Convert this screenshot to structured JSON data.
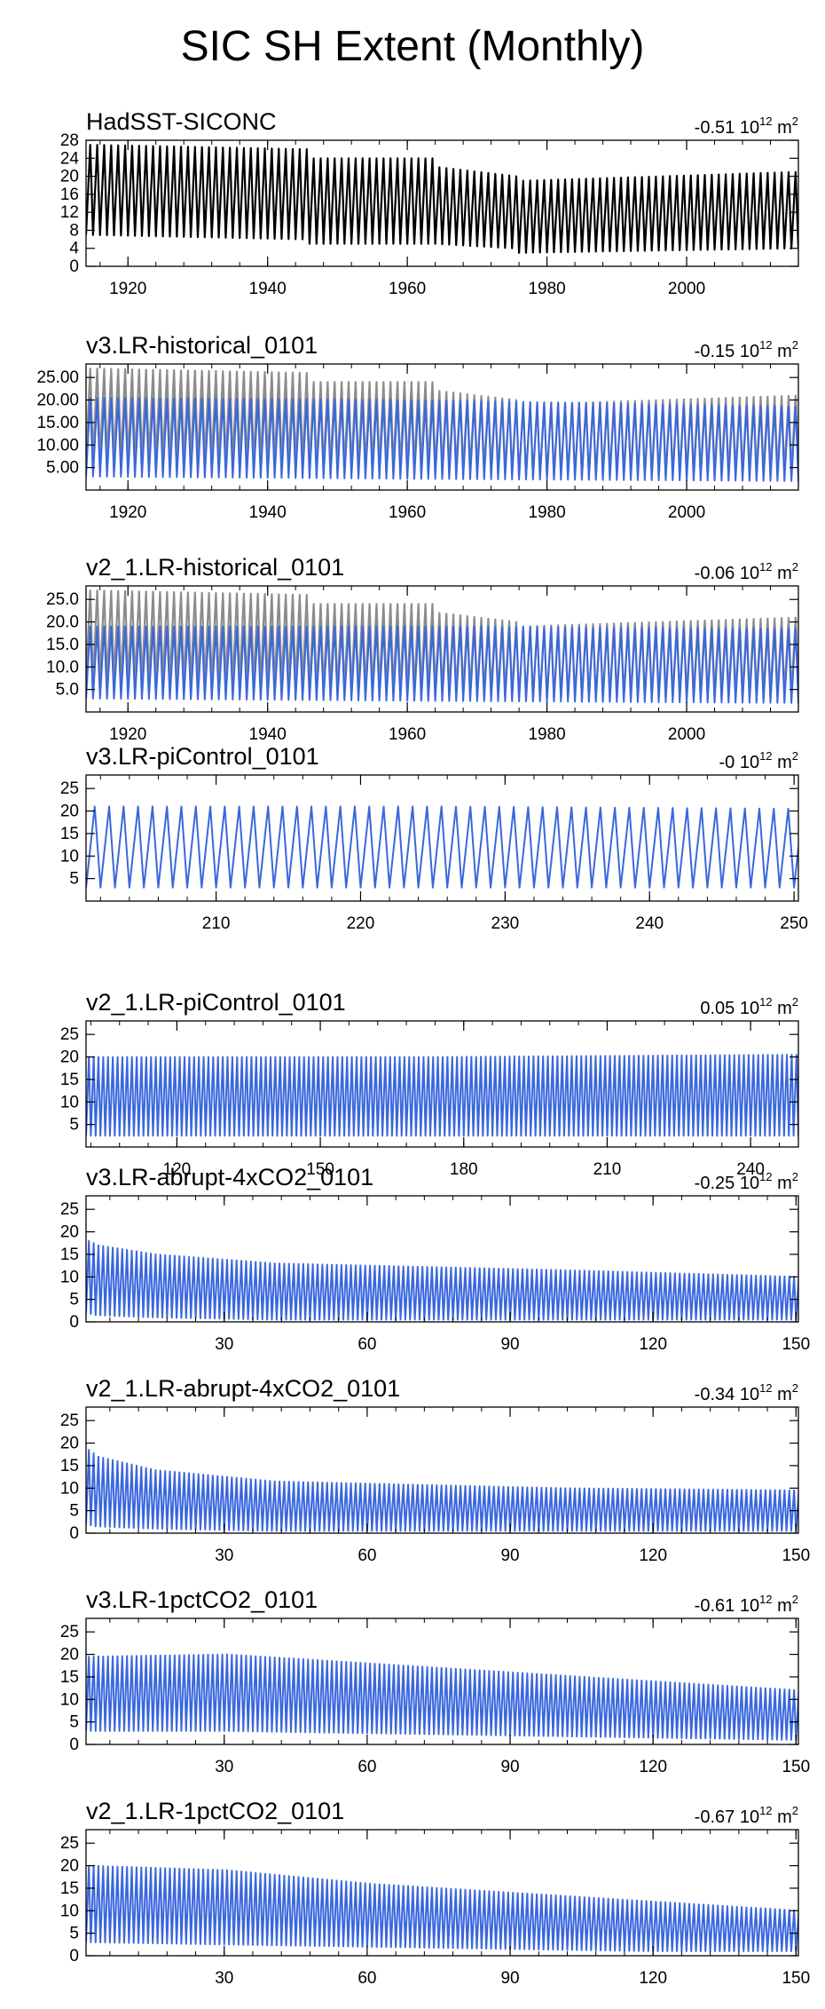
{
  "title": "SIC SH Extent (Monthly)",
  "colors": {
    "observed": "#000000",
    "observed_ref": "#8c8c8c",
    "model": "#3a67dd",
    "axis": "#000000"
  },
  "chart_data": [
    {
      "type": "line",
      "title": "HadSST-SICONC",
      "trend_value": "-0.51",
      "trend_unit": "10",
      "trend_exp": "12",
      "trend_tail": " m",
      "trend_sup": "2",
      "xlim": [
        1914,
        2016
      ],
      "ylim": [
        0,
        28
      ],
      "xticks": [
        1920,
        1940,
        1960,
        1980,
        2000
      ],
      "xtick_labels": [
        "1920",
        "1940",
        "1960",
        "1980",
        "2000"
      ],
      "yticks": [
        0,
        4,
        8,
        12,
        16,
        20,
        24,
        28
      ],
      "ytick_labels": [
        "0",
        "4",
        "8",
        "12",
        "16",
        "20",
        "24",
        "28"
      ],
      "series": [
        {
          "name": "HadSST-SICONC",
          "role": "observed",
          "cycle_period": 1,
          "seg_x": [
            1914,
            1945,
            1946,
            1963,
            1964,
            1975,
            1976,
            2016
          ],
          "max_y": [
            27,
            26,
            24,
            24,
            22,
            20,
            19,
            21
          ],
          "min_y": [
            7,
            6,
            5,
            5,
            5,
            4,
            3,
            4
          ]
        }
      ]
    },
    {
      "type": "line",
      "title": "v3.LR-historical_0101",
      "trend_value": "-0.15",
      "trend_unit": "10",
      "trend_exp": "12",
      "trend_tail": " m",
      "trend_sup": "2",
      "xlim": [
        1914,
        2016
      ],
      "ylim": [
        0,
        28
      ],
      "xticks": [
        1920,
        1940,
        1960,
        1980,
        2000
      ],
      "xtick_labels": [
        "1920",
        "1940",
        "1960",
        "1980",
        "2000"
      ],
      "yticks": [
        5,
        10,
        15,
        20,
        25
      ],
      "ytick_labels": [
        "5.00",
        "10.00",
        "15.00",
        "20.00",
        "25.00"
      ],
      "series": [
        {
          "name": "HadSST-SICONC",
          "role": "observed_ref",
          "cycle_period": 1,
          "seg_x": [
            1914,
            1945,
            1946,
            1963,
            1964,
            1975,
            1976,
            2016
          ],
          "max_y": [
            27,
            26,
            24,
            24,
            22,
            20,
            19,
            21
          ],
          "min_y": [
            7,
            6,
            5,
            5,
            5,
            4,
            3,
            4
          ]
        },
        {
          "name": "v3.LR-historical_0101",
          "role": "model",
          "cycle_period": 1,
          "seg_x": [
            1914,
            1960,
            2016
          ],
          "max_y": [
            20.5,
            20,
            18.5
          ],
          "min_y": [
            3,
            2.5,
            2
          ]
        }
      ]
    },
    {
      "type": "line",
      "title": "v2_1.LR-historical_0101",
      "trend_value": "-0.06",
      "trend_unit": "10",
      "trend_exp": "12",
      "trend_tail": " m",
      "trend_sup": "2",
      "xlim": [
        1914,
        2016
      ],
      "ylim": [
        0,
        28
      ],
      "xticks": [
        1920,
        1940,
        1960,
        1980,
        2000
      ],
      "xtick_labels": [
        "1920",
        "1940",
        "1960",
        "1980",
        "2000"
      ],
      "yticks": [
        5,
        10,
        15,
        20,
        25
      ],
      "ytick_labels": [
        "5.0",
        "10.0",
        "15.0",
        "20.0",
        "25.0"
      ],
      "series": [
        {
          "name": "HadSST-SICONC",
          "role": "observed_ref",
          "cycle_period": 1,
          "seg_x": [
            1914,
            1945,
            1946,
            1963,
            1964,
            1975,
            1976,
            2016
          ],
          "max_y": [
            27,
            26,
            24,
            24,
            22,
            20,
            19,
            21
          ],
          "min_y": [
            7,
            6,
            5,
            5,
            5,
            4,
            3,
            4
          ]
        },
        {
          "name": "v2_1.LR-historical_0101",
          "role": "model",
          "cycle_period": 1,
          "seg_x": [
            1914,
            1960,
            2016
          ],
          "max_y": [
            19,
            19,
            18.5
          ],
          "min_y": [
            3,
            2.5,
            2
          ]
        }
      ]
    },
    {
      "type": "line",
      "title": "v3.LR-piControl_0101",
      "trend_value": "-0",
      "trend_unit": "10",
      "trend_exp": "12",
      "trend_tail": " m",
      "trend_sup": "2",
      "xlim": [
        201,
        250.3
      ],
      "ylim": [
        0,
        28
      ],
      "xticks": [
        210,
        220,
        230,
        240,
        250
      ],
      "xtick_labels": [
        "210",
        "220",
        "230",
        "240",
        "250"
      ],
      "yticks": [
        5,
        10,
        15,
        20,
        25
      ],
      "ytick_labels": [
        "5",
        "10",
        "15",
        "20",
        "25"
      ],
      "series": [
        {
          "name": "v3.LR-piControl_0101",
          "role": "model",
          "cycle_period": 1,
          "seg_x": [
            201,
            225,
            250.3
          ],
          "max_y": [
            21,
            21,
            20.5
          ],
          "min_y": [
            3,
            3,
            3
          ]
        }
      ]
    },
    {
      "type": "line",
      "title": "v2_1.LR-piControl_0101",
      "trend_value": "0.05",
      "trend_unit": "10",
      "trend_exp": "12",
      "trend_tail": " m",
      "trend_sup": "2",
      "xlim": [
        101,
        250
      ],
      "ylim": [
        0,
        28
      ],
      "xticks": [
        120,
        150,
        180,
        210,
        240
      ],
      "xtick_labels": [
        "120",
        "150",
        "180",
        "210",
        "240"
      ],
      "yticks": [
        5,
        10,
        15,
        20,
        25
      ],
      "ytick_labels": [
        "5",
        "10",
        "15",
        "20",
        "25"
      ],
      "series": [
        {
          "name": "v2_1.LR-piControl_0101",
          "role": "model",
          "cycle_period": 1,
          "seg_x": [
            101,
            175,
            250
          ],
          "max_y": [
            20,
            20,
            20.5
          ],
          "min_y": [
            2.5,
            2.5,
            2.5
          ]
        }
      ]
    },
    {
      "type": "line",
      "title": "v3.LR-abrupt-4xCO2_0101",
      "trend_value": "-0.25",
      "trend_unit": "10",
      "trend_exp": "12",
      "trend_tail": " m",
      "trend_sup": "2",
      "xlim": [
        1,
        150.5
      ],
      "ylim": [
        0,
        28
      ],
      "xticks": [
        30,
        60,
        90,
        120,
        150
      ],
      "xtick_labels": [
        "30",
        "60",
        "90",
        "120",
        "150"
      ],
      "yticks": [
        0,
        5,
        10,
        15,
        20,
        25
      ],
      "ytick_labels": [
        "0",
        "5",
        "10",
        "15",
        "20",
        "25"
      ],
      "series": [
        {
          "name": "v3.LR-abrupt-4xCO2_0101",
          "role": "model",
          "cycle_period": 1,
          "seg_x": [
            1,
            3,
            15,
            40,
            100,
            150.5
          ],
          "max_y": [
            18,
            17,
            15,
            13,
            11.5,
            10
          ],
          "min_y": [
            2,
            1.5,
            1,
            0.5,
            0.5,
            0.5
          ]
        }
      ]
    },
    {
      "type": "line",
      "title": "v2_1.LR-abrupt-4xCO2_0101",
      "trend_value": "-0.34",
      "trend_unit": "10",
      "trend_exp": "12",
      "trend_tail": " m",
      "trend_sup": "2",
      "xlim": [
        1,
        150.5
      ],
      "ylim": [
        0,
        28
      ],
      "xticks": [
        30,
        60,
        90,
        120,
        150
      ],
      "xtick_labels": [
        "30",
        "60",
        "90",
        "120",
        "150"
      ],
      "yticks": [
        0,
        5,
        10,
        15,
        20,
        25
      ],
      "ytick_labels": [
        "0",
        "5",
        "10",
        "15",
        "20",
        "25"
      ],
      "series": [
        {
          "name": "v2_1.LR-abrupt-4xCO2_0101",
          "role": "model",
          "cycle_period": 1,
          "seg_x": [
            1,
            3,
            15,
            40,
            100,
            150.5
          ],
          "max_y": [
            18.5,
            17,
            14,
            11.5,
            10,
            9.5
          ],
          "min_y": [
            2,
            1.5,
            1,
            0.5,
            0.5,
            0.5
          ]
        }
      ]
    },
    {
      "type": "line",
      "title": "v3.LR-1pctCO2_0101",
      "trend_value": "-0.61",
      "trend_unit": "10",
      "trend_exp": "12",
      "trend_tail": " m",
      "trend_sup": "2",
      "xlim": [
        1,
        150.5
      ],
      "ylim": [
        0,
        28
      ],
      "xticks": [
        30,
        60,
        90,
        120,
        150
      ],
      "xtick_labels": [
        "30",
        "60",
        "90",
        "120",
        "150"
      ],
      "yticks": [
        0,
        5,
        10,
        15,
        20,
        25
      ],
      "ytick_labels": [
        "0",
        "5",
        "10",
        "15",
        "20",
        "25"
      ],
      "series": [
        {
          "name": "v3.LR-1pctCO2_0101",
          "role": "model",
          "cycle_period": 1,
          "seg_x": [
            1,
            30,
            60,
            90,
            120,
            150.5
          ],
          "max_y": [
            19.5,
            20,
            18,
            16,
            14,
            12
          ],
          "min_y": [
            3,
            3,
            2.5,
            2,
            1.5,
            1
          ]
        }
      ]
    },
    {
      "type": "line",
      "title": "v2_1.LR-1pctCO2_0101",
      "trend_value": "-0.67",
      "trend_unit": "10",
      "trend_exp": "12",
      "trend_tail": " m",
      "trend_sup": "2",
      "xlim": [
        1,
        150.5
      ],
      "ylim": [
        0,
        28
      ],
      "xticks": [
        30,
        60,
        90,
        120,
        150
      ],
      "xtick_labels": [
        "30",
        "60",
        "90",
        "120",
        "150"
      ],
      "yticks": [
        0,
        5,
        10,
        15,
        20,
        25
      ],
      "ytick_labels": [
        "0",
        "5",
        "10",
        "15",
        "20",
        "25"
      ],
      "series": [
        {
          "name": "v2_1.LR-1pctCO2_0101",
          "role": "model",
          "cycle_period": 1,
          "seg_x": [
            1,
            30,
            60,
            90,
            120,
            150.5
          ],
          "max_y": [
            20,
            19,
            16,
            14,
            12,
            10
          ],
          "min_y": [
            3,
            2.5,
            2,
            1.5,
            1,
            1
          ]
        }
      ]
    }
  ]
}
